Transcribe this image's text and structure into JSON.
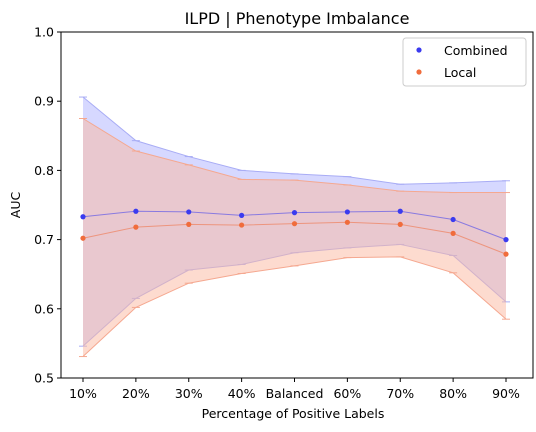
{
  "chart_data": {
    "type": "line",
    "title": "ILPD | Phenotype Imbalance",
    "xlabel": "Percentage of Positive Labels",
    "ylabel": "AUC",
    "categories": [
      "10%",
      "20%",
      "30%",
      "40%",
      "Balanced",
      "60%",
      "70%",
      "80%",
      "90%"
    ],
    "ylim": [
      0.5,
      1.0
    ],
    "yticks": [
      "0.5",
      "0.6",
      "0.7",
      "0.8",
      "0.9",
      "1.0"
    ],
    "grid": false,
    "legend_position": "top-right",
    "series": [
      {
        "name": "Combined",
        "color": "#3b3bef",
        "values": [
          0.733,
          0.741,
          0.74,
          0.735,
          0.739,
          0.74,
          0.741,
          0.729,
          0.7
        ],
        "upper": [
          0.906,
          0.843,
          0.82,
          0.8,
          0.795,
          0.791,
          0.78,
          0.782,
          0.785
        ],
        "lower": [
          0.546,
          0.615,
          0.656,
          0.664,
          0.681,
          0.688,
          0.693,
          0.677,
          0.61
        ]
      },
      {
        "name": "Local",
        "color": "#f06c3c",
        "values": [
          0.702,
          0.718,
          0.722,
          0.721,
          0.723,
          0.725,
          0.722,
          0.709,
          0.679
        ],
        "upper": [
          0.875,
          0.828,
          0.808,
          0.787,
          0.786,
          0.779,
          0.77,
          0.768,
          0.768
        ],
        "lower": [
          0.531,
          0.602,
          0.637,
          0.651,
          0.662,
          0.674,
          0.675,
          0.652,
          0.585
        ]
      }
    ]
  }
}
